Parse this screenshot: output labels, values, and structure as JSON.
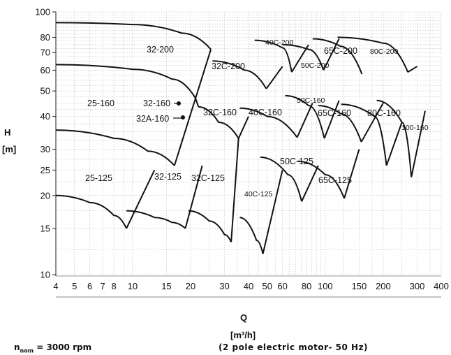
{
  "chart_data": {
    "type": "line",
    "title": "",
    "xlabel": "Q",
    "xunit": "[m³/h]",
    "ylabel": "H",
    "yunit": "[m]",
    "x_scale": "log",
    "y_scale": "log",
    "xlim": [
      4,
      400
    ],
    "ylim": [
      10,
      100
    ],
    "grid": true,
    "x_ticks": [
      4,
      5,
      6,
      7,
      8,
      10,
      15,
      20,
      30,
      40,
      50,
      60,
      80,
      100,
      150,
      200,
      300,
      400
    ],
    "x_tick_labels": [
      "4",
      "5",
      "6",
      "7",
      "8",
      "10",
      "15",
      "20",
      "30",
      "40",
      "50",
      "60",
      "80",
      "100",
      "150",
      "200",
      "300",
      "400"
    ],
    "y_ticks": [
      10,
      15,
      20,
      25,
      30,
      40,
      50,
      60,
      70,
      80,
      100
    ],
    "y_tick_labels": [
      "10",
      "15",
      "20",
      "25",
      "30",
      "40",
      "50",
      "60",
      "70",
      "80",
      "100"
    ],
    "series": [
      {
        "name": "25-125",
        "x": [
          4,
          6,
          8,
          9.3
        ],
        "y": [
          20,
          18.8,
          16.8,
          15
        ]
      },
      {
        "name": "25-160",
        "x": [
          4,
          8,
          12,
          16.5
        ],
        "y": [
          35.5,
          33,
          29.5,
          26
        ]
      },
      {
        "name": "32-125",
        "x": [
          9.3,
          13,
          16,
          18.8
        ],
        "y": [
          17.5,
          16.5,
          15.8,
          15
        ]
      },
      {
        "name": "32-200",
        "x": [
          4,
          10,
          18,
          25.5
        ],
        "y": [
          91,
          89.5,
          83,
          72
        ]
      },
      {
        "name": "32-160",
        "x": [
          4,
          10,
          16,
          21.2
        ],
        "y": [
          63,
          60.5,
          55.5,
          47
        ]
      },
      {
        "name": "32C-125",
        "x": [
          19.5,
          25,
          30,
          32.5
        ],
        "y": [
          17.5,
          16,
          14.2,
          13.3
        ]
      },
      {
        "name": "32C-160",
        "x": [
          22,
          28,
          35.5
        ],
        "y": [
          43.5,
          38,
          33
        ]
      },
      {
        "name": "32C-200",
        "x": [
          26,
          38,
          49.5
        ],
        "y": [
          65,
          60,
          51
        ]
      },
      {
        "name": "40C-125",
        "x": [
          36,
          44,
          47.5
        ],
        "y": [
          16.5,
          13.5,
          12
        ]
      },
      {
        "name": "40C-160",
        "x": [
          36,
          50,
          71.5
        ],
        "y": [
          43,
          40,
          33.3
        ]
      },
      {
        "name": "40C-200",
        "x": [
          43,
          60,
          67
        ],
        "y": [
          78,
          73,
          59
        ]
      },
      {
        "name": "50C-125",
        "x": [
          46,
          64,
          75.5
        ],
        "y": [
          28,
          24,
          19
        ]
      },
      {
        "name": "50C-160",
        "x": [
          62,
          82,
          99
        ],
        "y": [
          48,
          44,
          33
        ]
      },
      {
        "name": "50C-200",
        "x": [
          60,
          82,
          98
        ],
        "y": [
          75,
          72,
          60
        ]
      },
      {
        "name": "65C-125",
        "x": [
          72,
          100,
          125.5
        ],
        "y": [
          27,
          24,
          19.5
        ]
      },
      {
        "name": "65C-160",
        "x": [
          92,
          120,
          154
        ],
        "y": [
          44,
          41,
          32
        ]
      },
      {
        "name": "65C-200",
        "x": [
          86,
          120,
          155
        ],
        "y": [
          79,
          74,
          58
        ]
      },
      {
        "name": "80C-160",
        "x": [
          121,
          180,
          208
        ],
        "y": [
          44.5,
          40,
          26
        ]
      },
      {
        "name": "80C-200",
        "x": [
          116,
          200,
          268.5
        ],
        "y": [
          80,
          76,
          59
        ]
      },
      {
        "name": "100-160",
        "x": [
          185,
          250,
          280
        ],
        "y": [
          46,
          38,
          23.5
        ]
      }
    ],
    "annotations": [
      "32A-160"
    ]
  },
  "footer": {
    "n_symbol": "n",
    "n_sub": "nom",
    "speed": " = 3000 rpm",
    "motor": "(2 pole electric motor- 50 Hz)"
  }
}
